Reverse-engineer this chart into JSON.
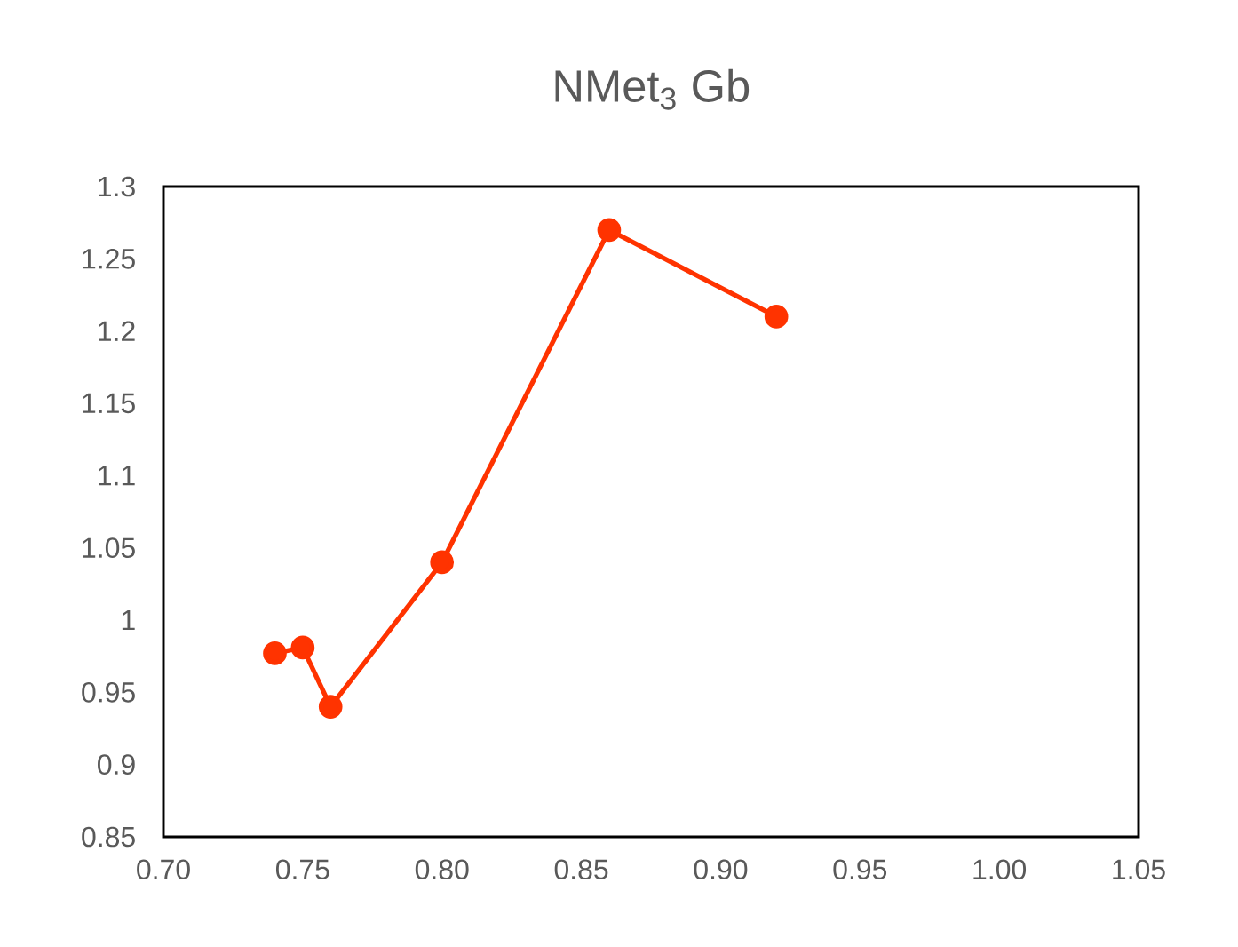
{
  "chart_data": {
    "type": "line",
    "title": "NMet$_{3}$ Gb",
    "x": [
      0.74,
      0.75,
      0.76,
      0.8,
      0.86,
      0.92
    ],
    "series": [
      {
        "color": "#ff3300",
        "values": [
          0.977,
          0.981,
          0.94,
          1.04,
          1.27,
          1.21
        ]
      }
    ],
    "xlim": [
      0.7,
      1.05
    ],
    "xticks": [
      {
        "value": 0.7,
        "label": "0.70"
      },
      {
        "value": 0.75,
        "label": "0.75"
      },
      {
        "value": 0.8,
        "label": "0.80"
      },
      {
        "value": 0.85,
        "label": "0.85"
      },
      {
        "value": 0.9,
        "label": "0.90"
      },
      {
        "value": 0.95,
        "label": "0.95"
      },
      {
        "value": 1.0,
        "label": "1.00"
      },
      {
        "value": 1.05,
        "label": "1.05"
      }
    ],
    "ylim": [
      0.85,
      1.3
    ],
    "yticks": [
      0.85,
      0.9,
      0.95,
      1,
      1.05,
      1.1,
      1.15,
      1.2,
      1.25,
      1.3
    ],
    "grid": false,
    "marker": "circle",
    "line_style": "solid"
  }
}
